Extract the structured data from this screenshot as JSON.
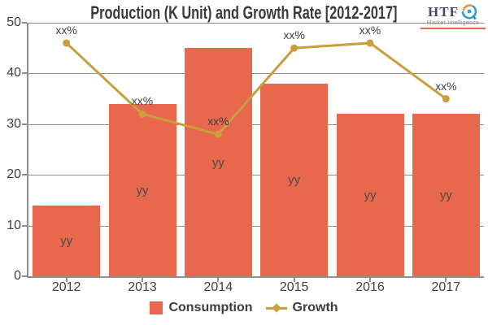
{
  "chart_data": {
    "type": "combo-bar-line",
    "title": "Production (K Unit) and Growth Rate [2012-2017]",
    "categories": [
      "2012",
      "2013",
      "2014",
      "2015",
      "2016",
      "2017"
    ],
    "series": [
      {
        "name": "Consumption",
        "type": "bar",
        "values": [
          14,
          34,
          45,
          38,
          32,
          32
        ],
        "point_labels": [
          "yy",
          "yy",
          "yy",
          "yy",
          "yy",
          "yy"
        ],
        "color": "#E8684E"
      },
      {
        "name": "Growth",
        "type": "line",
        "values": [
          46,
          32,
          28,
          45,
          46,
          35
        ],
        "point_labels": [
          "xx%",
          "xx%",
          "xx%",
          "xx%",
          "xx%",
          "xx%"
        ],
        "color": "#C99F3D"
      }
    ],
    "ylim": [
      0,
      50
    ],
    "yticks": [
      0,
      10,
      20,
      30,
      40,
      50
    ],
    "grid": true,
    "legend_position": "bottom"
  },
  "logo": {
    "brand": "HTF",
    "subtitle": "Market Intelligence"
  },
  "colors": {
    "bar": "#E8684E",
    "line": "#C99F3D",
    "grid": "#8E8E8E",
    "axis": "#8F8F8F",
    "text": "#3F3F3F",
    "logo_blue": "#2BA0DB",
    "logo_orange": "#E8953D",
    "logo_dark": "#474A66",
    "logo_underline": "#D96A55"
  }
}
